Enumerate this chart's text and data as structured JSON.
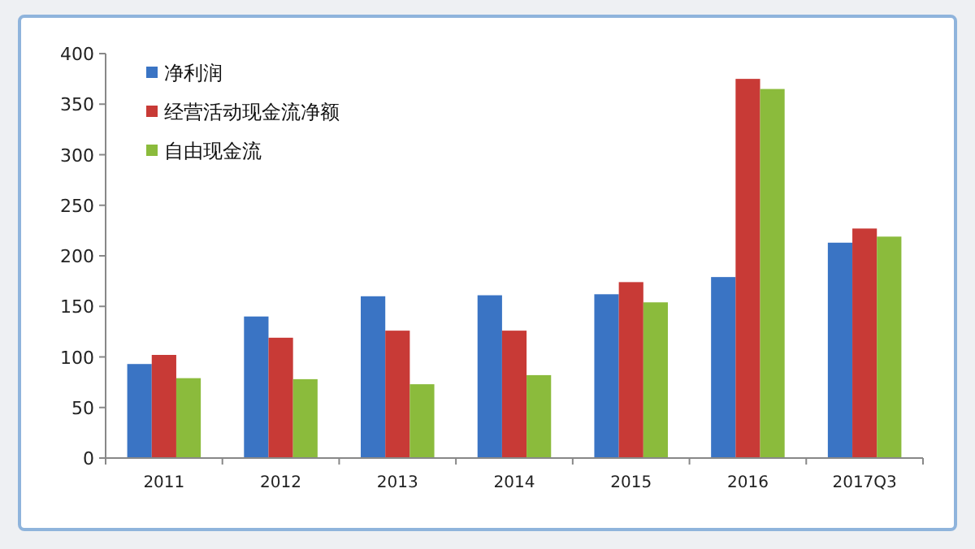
{
  "chart_data": {
    "type": "bar",
    "categories": [
      "2011",
      "2012",
      "2013",
      "2014",
      "2015",
      "2016",
      "2017Q3"
    ],
    "series": [
      {
        "name": "净利润",
        "color": "#3a74c4",
        "values": [
          93,
          140,
          160,
          161,
          162,
          179,
          213
        ]
      },
      {
        "name": "经营活动现金流净额",
        "color": "#c83a36",
        "values": [
          102,
          119,
          126,
          126,
          174,
          375,
          227
        ]
      },
      {
        "name": "自由现金流",
        "color": "#8bbb3c",
        "values": [
          79,
          78,
          73,
          82,
          154,
          365,
          219
        ]
      }
    ],
    "ylim": [
      0,
      400
    ],
    "yticks": [
      0,
      50,
      100,
      150,
      200,
      250,
      300,
      350,
      400
    ],
    "grid": false,
    "legend": "top left"
  }
}
